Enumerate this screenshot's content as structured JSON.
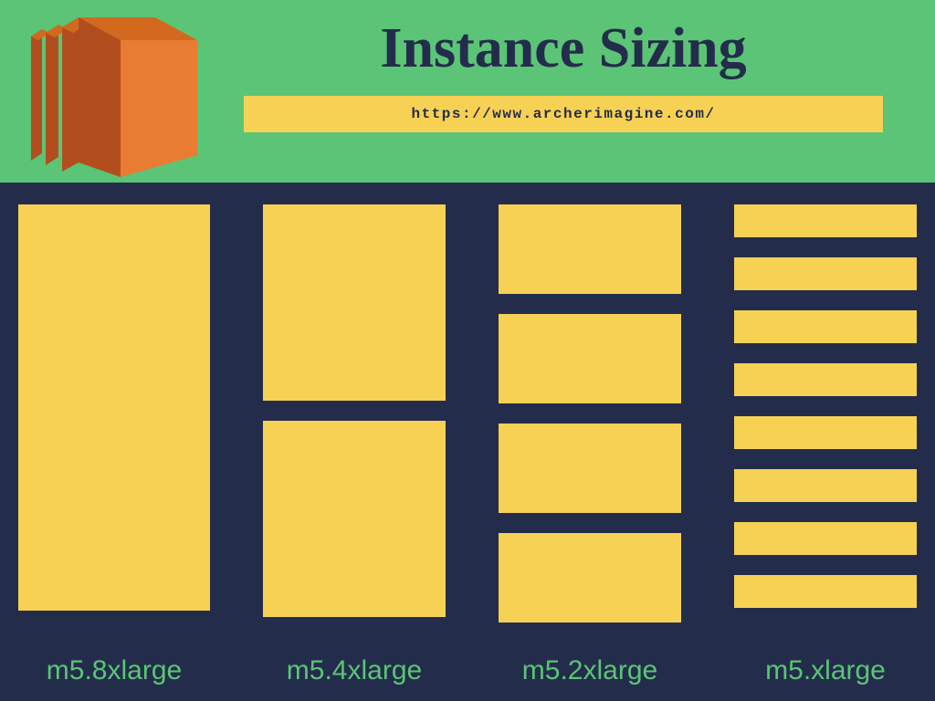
{
  "colors": {
    "header_bg": "#5cc476",
    "body_bg": "#232d4b",
    "block": "#f7d154",
    "title": "#232d4b",
    "url_bg": "#f7d154",
    "url_text": "#232d4b",
    "label": "#5cc476",
    "logo_face": "#e77c32",
    "logo_side_dark": "#b24e1e",
    "logo_side_mid": "#d2691e"
  },
  "header": {
    "title": "Instance Sizing",
    "url": "https://www.archerimagine.com/"
  },
  "diagram": {
    "column_gap": 46,
    "columns": [
      {
        "label": "m5.8xlarge",
        "block_width": 210,
        "block_height": 445,
        "block_gap": 0,
        "count": 1
      },
      {
        "label": "m5.4xlarge",
        "block_width": 200,
        "block_height": 215,
        "block_gap": 22,
        "count": 2
      },
      {
        "label": "m5.2xlarge",
        "block_width": 200,
        "block_height": 98,
        "block_gap": 22,
        "count": 4
      },
      {
        "label": "m5.xlarge",
        "block_width": 200,
        "block_height": 36,
        "block_gap": 22,
        "count": 8
      }
    ]
  }
}
